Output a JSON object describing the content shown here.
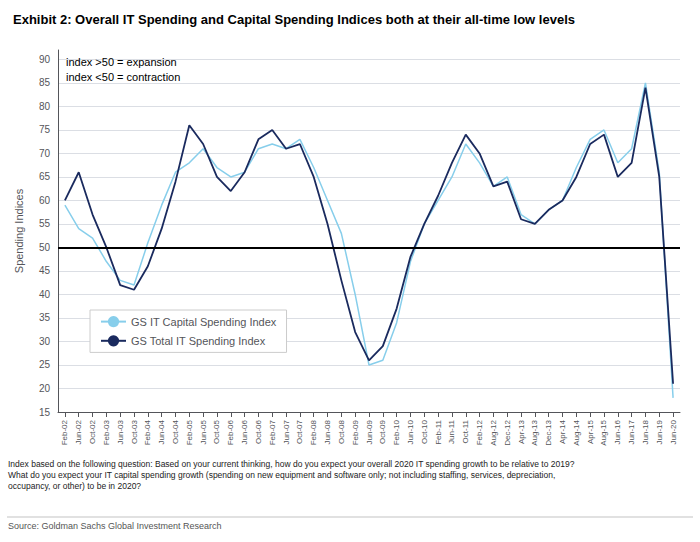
{
  "chart_data": {
    "type": "line",
    "title": "Exhibit 2: Overall IT Spending and Capital Spending Indices both at their all-time low levels",
    "ylabel": "Spending Indices",
    "annotations": [
      "index >50 = expansion",
      "index <50 = contraction"
    ],
    "footnotes": [
      "Index based on the following question: Based on your current thinking, how do you expect your overall 2020 IT spending growth to be relative to 2019?",
      "What do you expect your IT capital spending growth (spending on new equipment and software only; not including staffing, services, depreciation,",
      "occupancy, or other) to be in 2020?"
    ],
    "source": "Source: Goldman Sachs Global Investment Research",
    "categories": [
      "Feb-02",
      "Jun-02",
      "Oct-02",
      "Feb-03",
      "Jun-03",
      "Oct-03",
      "Feb-04",
      "Jun-04",
      "Oct-04",
      "Feb-05",
      "Jun-05",
      "Oct-05",
      "Feb-06",
      "Jun-06",
      "Oct-06",
      "Feb-07",
      "Jun-07",
      "Oct-07",
      "Feb-08",
      "Jun-08",
      "Oct-08",
      "Feb-09",
      "Jun-09",
      "Oct-09",
      "Feb-10",
      "Jun-10",
      "Oct-10",
      "Feb-11",
      "Jun-11",
      "Oct-11",
      "Feb-12",
      "Aug-12",
      "Dec-12",
      "Apr-13",
      "Aug-13",
      "Dec-13",
      "Apr-14",
      "Aug-14",
      "Apr-15",
      "Aug-15",
      "Jun-16",
      "Jun-17",
      "Jun-18",
      "Jun-19",
      "Jun-20"
    ],
    "series": [
      {
        "name": "GS IT Capital Spending Index",
        "color": "#87CEEB",
        "values": [
          59,
          54,
          52,
          47,
          43,
          42,
          51,
          59,
          66,
          68,
          71,
          67,
          65,
          66,
          71,
          72,
          71,
          73,
          67,
          60,
          53,
          40,
          25,
          26,
          34,
          47,
          55,
          60,
          65,
          72,
          68,
          63,
          65,
          57,
          55,
          58,
          60,
          67,
          73,
          75,
          68,
          71,
          85,
          66,
          18
        ]
      },
      {
        "name": "GS Total IT Spending Index",
        "color": "#1a2a5e",
        "values": [
          60,
          66,
          57,
          50,
          42,
          41,
          46,
          54,
          64,
          76,
          72,
          65,
          62,
          66,
          73,
          75,
          71,
          72,
          65,
          55,
          43,
          32,
          26,
          29,
          37,
          48,
          55,
          61,
          68,
          74,
          70,
          63,
          64,
          56,
          55,
          58,
          60,
          65,
          72,
          74,
          65,
          68,
          84,
          65,
          21
        ]
      }
    ],
    "reference_line": 50,
    "ylim": [
      15,
      92
    ],
    "yticks": [
      15,
      20,
      25,
      30,
      35,
      40,
      45,
      50,
      55,
      60,
      65,
      70,
      75,
      80,
      85,
      90
    ],
    "grid": true,
    "legend": "lower left"
  }
}
